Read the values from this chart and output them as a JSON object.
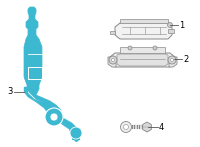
{
  "bg_color": "#ffffff",
  "blue": "#3cb8d0",
  "gray_stroke": "#888888",
  "gray_fill": "#e8e8e8",
  "gray_dark": "#aaaaaa",
  "black": "#000000",
  "fig_width": 2.0,
  "fig_height": 1.47,
  "dpi": 100
}
